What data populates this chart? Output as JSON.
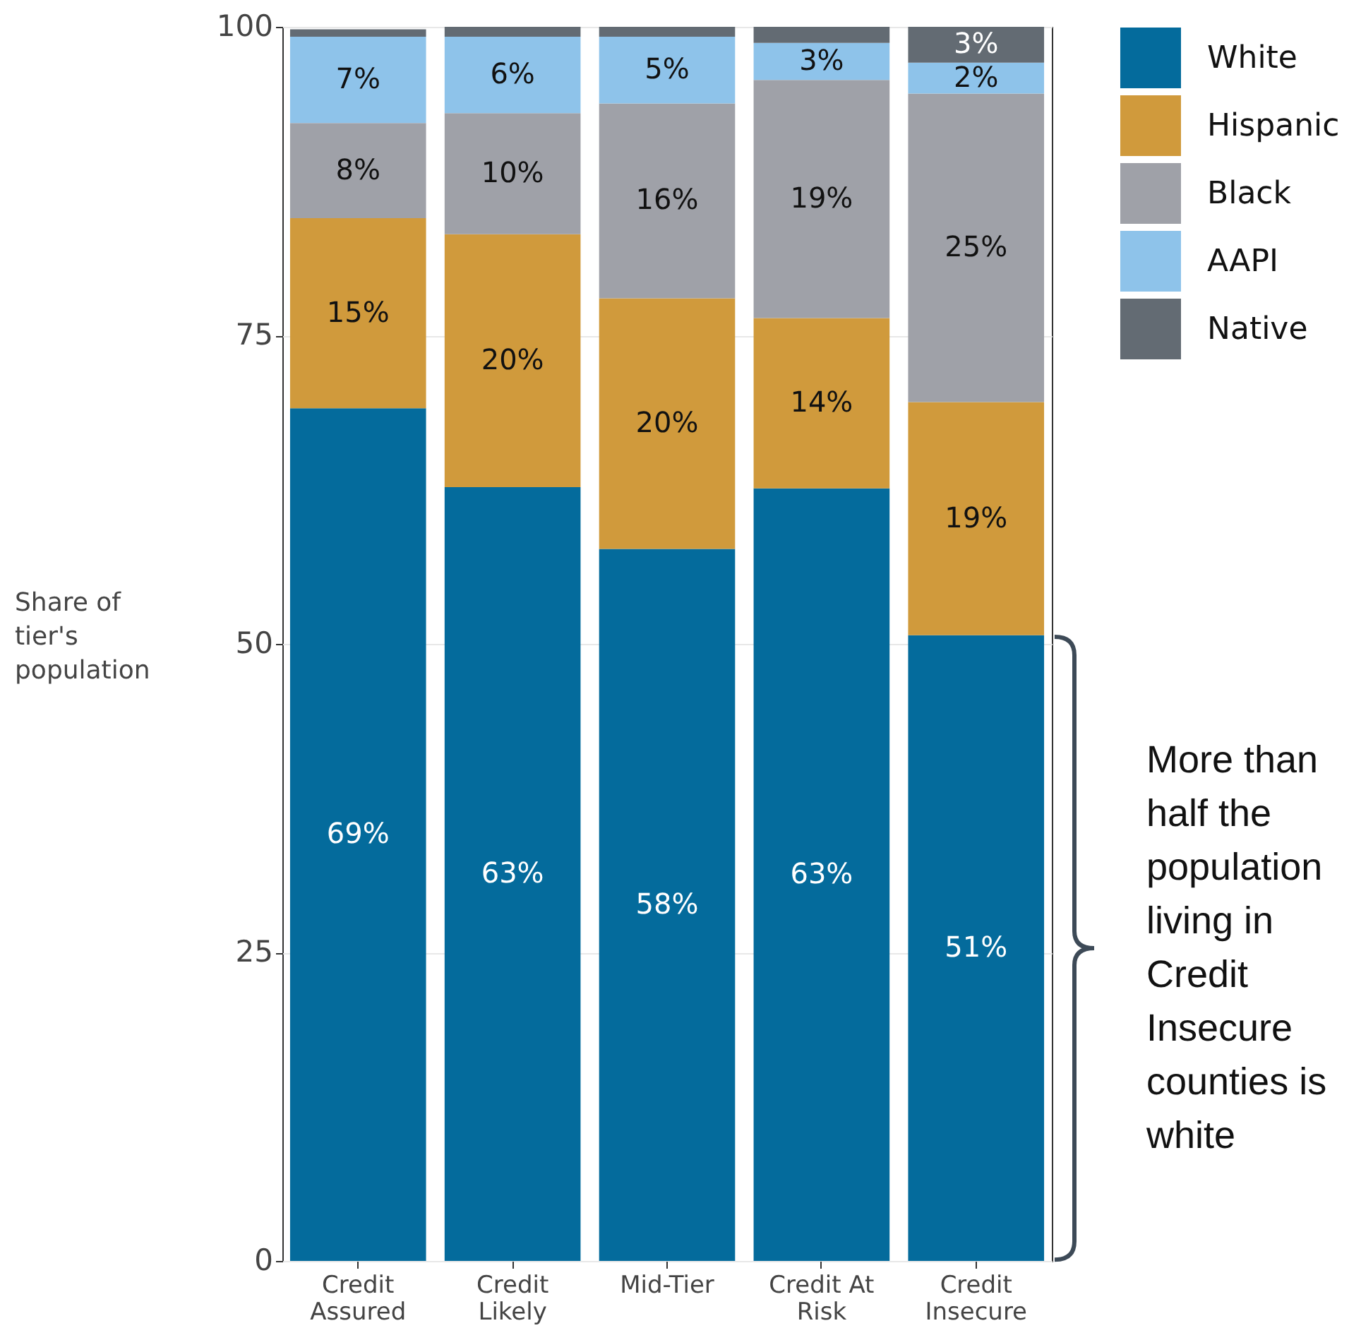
{
  "chart_data": {
    "type": "bar",
    "stacked": true,
    "ylabel": "Share of tier's population",
    "categories": [
      "Credit Assured",
      "Credit Likely",
      "Mid-Tier",
      "Credit At Risk",
      "Credit Insecure"
    ],
    "series": [
      {
        "name": "White",
        "color": "#046b9c",
        "values": [
          69.1,
          62.7,
          57.7,
          62.6,
          50.7
        ],
        "value_labels": [
          "69%",
          "63%",
          "58%",
          "63%",
          "51%"
        ]
      },
      {
        "name": "Hispanic",
        "color": "#d09a3c",
        "values": [
          15.4,
          20.5,
          20.3,
          13.8,
          18.9
        ],
        "value_labels": [
          "15%",
          "20%",
          "20%",
          "14%",
          "19%"
        ]
      },
      {
        "name": "Black",
        "color": "#9fa1a8",
        "values": [
          7.7,
          9.8,
          15.8,
          19.3,
          25.0
        ],
        "value_labels": [
          "8%",
          "10%",
          "16%",
          "19%",
          "25%"
        ]
      },
      {
        "name": "AAPI",
        "color": "#8ec3ea",
        "values": [
          7.0,
          6.2,
          5.4,
          3.0,
          2.5
        ],
        "value_labels": [
          "7%",
          "6%",
          "5%",
          "3%",
          "2%"
        ]
      },
      {
        "name": "Native",
        "color": "#636b73",
        "values": [
          0.6,
          0.8,
          0.8,
          1.3,
          2.9
        ],
        "value_labels": [
          null,
          null,
          null,
          null,
          "3%"
        ]
      }
    ],
    "ylim": [
      0,
      100
    ],
    "yticks": [
      0,
      25,
      50,
      75,
      100
    ],
    "grid": "y",
    "legend": "top right",
    "annotations": [
      "More than half the population living in Credit Insecure counties is white"
    ]
  }
}
